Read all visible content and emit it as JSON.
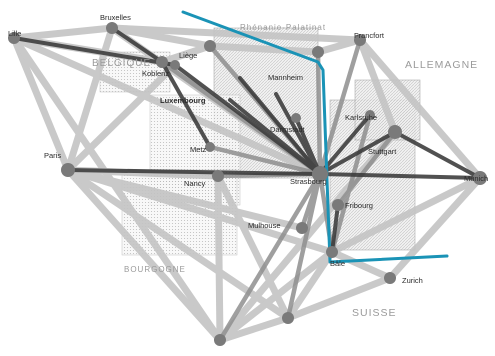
{
  "map": {
    "cities": {
      "lille": "Lille",
      "bruxelles": "Bruxelles",
      "liege": "Liège",
      "koblenz": "Koblenz",
      "luxembourg": "Luxembourg",
      "paris": "Paris",
      "metz": "Metz",
      "nancy": "Nancy",
      "strasbourg": "Strasbourg",
      "mannheim": "Mannheim",
      "darmstadt": "Darmstadt",
      "karlsruhe": "Karlsruhe",
      "stuttgart": "Stuttgart",
      "fribourg": "Fribourg",
      "mulhouse": "Mulhouse",
      "bale": "Bâle",
      "zurich": "Zurich",
      "munich": "Munich",
      "francfort": "Francfort"
    },
    "regions": {
      "belgique": "BELGIQUE",
      "allemagne": "ALLEMAGNE",
      "rhenanie": "Rhénanie-Palatinat",
      "bourgogne": "BOURGOGNE",
      "suisse": "SUISSE"
    },
    "colors": {
      "border": "#1a93b6",
      "node": "#7a7a7a",
      "edge_dark": "#333333",
      "edge_light": "#bdbdbd"
    }
  }
}
